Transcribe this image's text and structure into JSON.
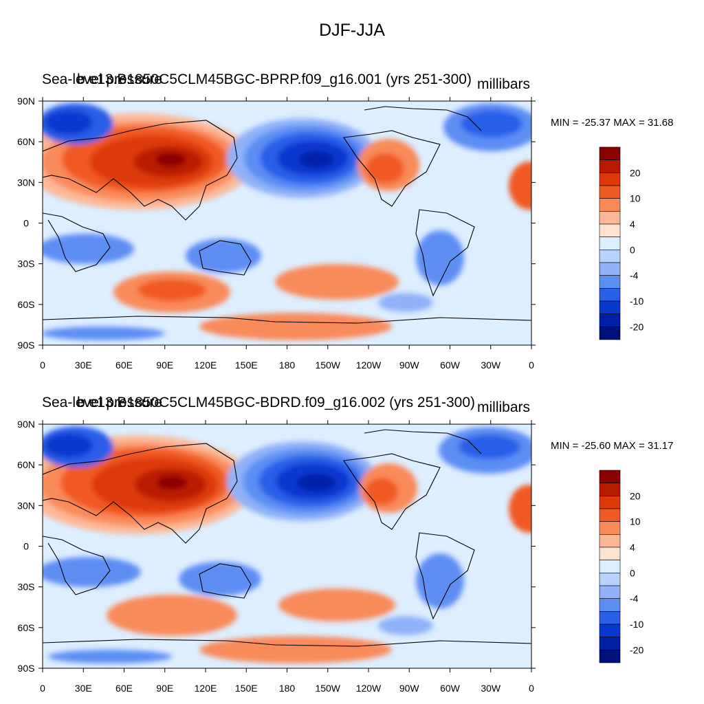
{
  "figure": {
    "title": "DJF-JJA",
    "lat_labels": [
      "90N",
      "60N",
      "30N",
      "0",
      "30S",
      "60S",
      "90S"
    ],
    "lon_labels": [
      "0",
      "30E",
      "60E",
      "90E",
      "120E",
      "150E",
      "180",
      "150W",
      "120W",
      "90W",
      "60W",
      "30W",
      "0"
    ],
    "colorbar_labels": [
      "20",
      "10",
      "4",
      "0",
      "-4",
      "-10",
      "-20"
    ],
    "colorbar_levels": [
      "#8b0000",
      "#b81a00",
      "#dd3a0a",
      "#f05a24",
      "#f98a5a",
      "#fcb896",
      "#fde3cf",
      "#ddeeff",
      "#b7d2fb",
      "#8fb2f8",
      "#5d8ef4",
      "#2a5fe8",
      "#0a38cf",
      "#0020a8",
      "#00107a"
    ],
    "continent_color": "#000000"
  },
  "panels": [
    {
      "left_title": "Sea-level pressure",
      "center_title": "b.e13.B1850C5CLM45BGC-BPRP.f09_g16.001 (yrs 251-300)",
      "units": "millibars",
      "min_max": "MIN = -25.37 MAX =  31.68"
    },
    {
      "left_title": "Sea-level pressure",
      "center_title": "b.e13.B1850C5CLM45BGC-BDRD.f09_g16.002 (yrs 251-300)",
      "units": "millibars",
      "min_max": "MIN = -25.60 MAX =  31.17"
    }
  ]
}
